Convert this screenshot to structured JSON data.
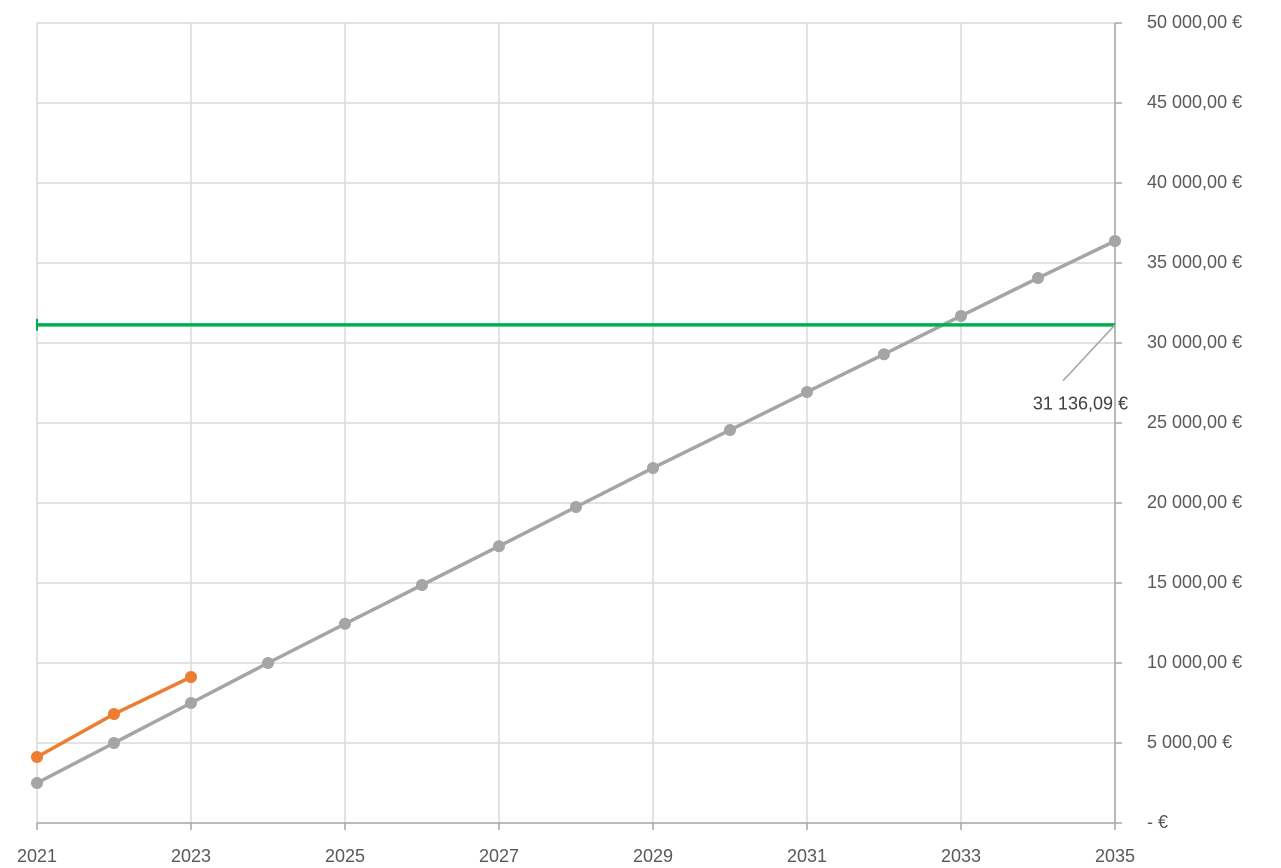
{
  "chart_data": {
    "type": "line",
    "xlim": [
      2021,
      2035
    ],
    "xticks": [
      2021,
      2023,
      2025,
      2027,
      2029,
      2031,
      2033,
      2035
    ],
    "ylim": [
      0,
      50000
    ],
    "yticks": [
      {
        "value": 0,
        "label": "-   €"
      },
      {
        "value": 5000,
        "label": "5 000,00 €"
      },
      {
        "value": 10000,
        "label": "10 000,00 €"
      },
      {
        "value": 15000,
        "label": "15 000,00 €"
      },
      {
        "value": 20000,
        "label": "20 000,00 €"
      },
      {
        "value": 25000,
        "label": "25 000,00 €"
      },
      {
        "value": 30000,
        "label": "30 000,00 €"
      },
      {
        "value": 35000,
        "label": "35 000,00 €"
      },
      {
        "value": 40000,
        "label": "40 000,00 €"
      },
      {
        "value": 45000,
        "label": "45 000,00 €"
      },
      {
        "value": 50000,
        "label": "50 000,00 €"
      }
    ],
    "grid": true,
    "y_axis_side": "right",
    "series": [
      {
        "color": "#a5a5a5",
        "markers": true,
        "x": [
          2021,
          2022,
          2023,
          2024,
          2025,
          2026,
          2027,
          2028,
          2029,
          2030,
          2031,
          2032,
          2033,
          2034,
          2035
        ],
        "values": [
          2500,
          5000,
          7500,
          10000,
          12450,
          14875,
          17300,
          19750,
          22190,
          24560,
          26940,
          29300,
          31690,
          34060,
          36375
        ]
      },
      {
        "color": "#ed7d31",
        "markers": true,
        "x": [
          2021,
          2022,
          2023
        ],
        "values": [
          4125,
          6810,
          9125
        ]
      },
      {
        "color": "#00b050",
        "markers": false,
        "x": [
          2021,
          2035
        ],
        "values": [
          31136.09,
          31136.09
        ]
      }
    ],
    "annotations": [
      {
        "text": "31 136,09 €",
        "x": 2035,
        "y": 31136.09
      }
    ]
  }
}
